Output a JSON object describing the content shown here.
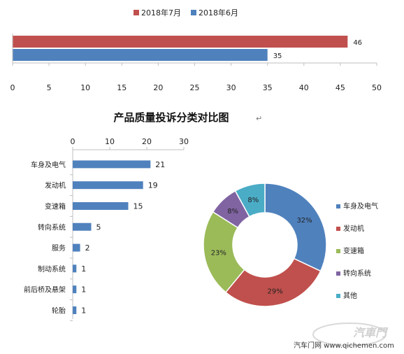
{
  "chart_data": [
    {
      "type": "bar",
      "orientation": "horizontal",
      "legend": {
        "position": "top"
      },
      "series": [
        {
          "name": "2018年7月",
          "values": [
            46
          ],
          "color": "#C0504D"
        },
        {
          "name": "2018年6月",
          "values": [
            35
          ],
          "color": "#4F81BD"
        }
      ],
      "xlim": [
        0,
        50
      ],
      "xticks": [
        0,
        5,
        10,
        15,
        20,
        25,
        30,
        35,
        40,
        45,
        50
      ],
      "data_labels": true
    },
    {
      "type": "bar",
      "orientation": "horizontal",
      "title": "产品质量投诉分类对比图",
      "categories": [
        "车身及电气",
        "发动机",
        "变速箱",
        "转向系统",
        "服务",
        "制动系统",
        "前后桥及悬架",
        "轮胎"
      ],
      "values": [
        21,
        19,
        15,
        5,
        2,
        1,
        1,
        1
      ],
      "color": "#4F81BD",
      "xlim": [
        0,
        30
      ],
      "xticks": [
        0,
        10,
        20,
        30
      ],
      "xaxis_position": "top",
      "data_labels": true
    },
    {
      "type": "pie",
      "style": "doughnut",
      "categories": [
        "车身及电气",
        "发动机",
        "变速箱",
        "转向系统",
        "其他"
      ],
      "values": [
        32,
        29,
        23,
        8,
        8
      ],
      "labels": [
        "32%",
        "29%",
        "23%",
        "8%",
        "8%"
      ],
      "colors": [
        "#4F81BD",
        "#C0504D",
        "#9BBB59",
        "#8064A2",
        "#4BACC6"
      ],
      "legend": {
        "position": "right"
      }
    }
  ],
  "watermark": {
    "brand": "汽車門",
    "site": "汽车门网 www.qichemen.com"
  },
  "return_mark": "↵"
}
